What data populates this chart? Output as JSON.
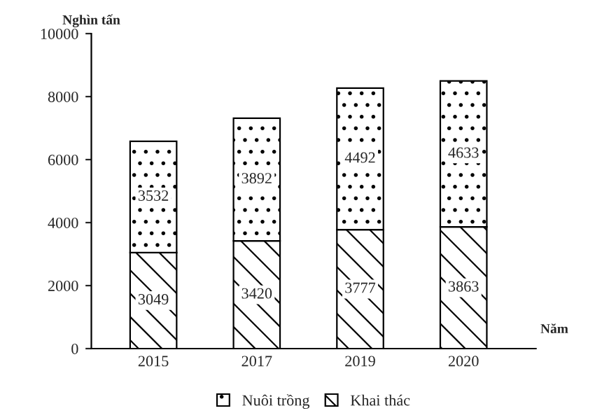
{
  "chart_data": {
    "type": "bar",
    "stacked": true,
    "xlabel": "Năm",
    "ylabel": "Nghìn tấn",
    "categories": [
      "2015",
      "2017",
      "2019",
      "2020"
    ],
    "series": [
      {
        "name": "Khai thác",
        "color": "#ffffff",
        "values": [
          3049,
          3420,
          3777,
          3863
        ]
      },
      {
        "name": "Nuôi trồng",
        "color": "#ffffff",
        "values": [
          3532,
          3892,
          4492,
          4633
        ]
      }
    ],
    "ylim": [
      0,
      10000
    ],
    "yticks": [
      0,
      2000,
      4000,
      6000,
      8000,
      10000
    ],
    "data_labels": true,
    "grid": false,
    "legend": "bottom"
  }
}
